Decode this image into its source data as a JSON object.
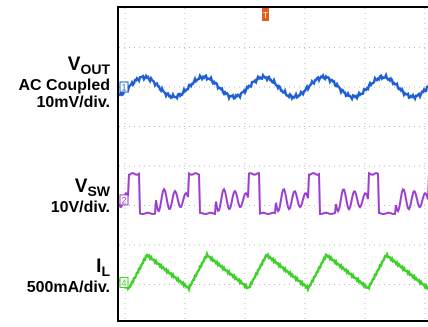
{
  "channels": [
    {
      "label_main": "V",
      "label_sub": "OUT",
      "lines": [
        "AC Coupled",
        "10mV/div."
      ],
      "marker": "1",
      "color": "#1f5fd6"
    },
    {
      "label_main": "V",
      "label_sub": "SW",
      "lines": [
        "10V/div."
      ],
      "marker": "2",
      "color": "#9b3fd1"
    },
    {
      "label_main": "I",
      "label_sub": "L",
      "lines": [
        "500mA/div."
      ],
      "marker": "4",
      "color": "#3fcf2a"
    }
  ],
  "trigger_marker": "T",
  "trigger_color": "#e2601f",
  "chart_data": {
    "type": "line",
    "grid": true,
    "x_divisions": 10,
    "y_divisions": 8,
    "series": [
      {
        "name": "VOUT",
        "shape": "sine",
        "cycles": 5.2,
        "amplitude_div": 0.25,
        "center_div": 2.0
      },
      {
        "name": "VSW",
        "shape": "pulse_with_ringing",
        "cycles": 5.2,
        "high_div": 4.2,
        "low_div": 5.2
      },
      {
        "name": "IL",
        "shape": "triangle",
        "cycles": 5.2,
        "peak_div": 6.25,
        "valley_div": 7.1
      }
    ]
  }
}
